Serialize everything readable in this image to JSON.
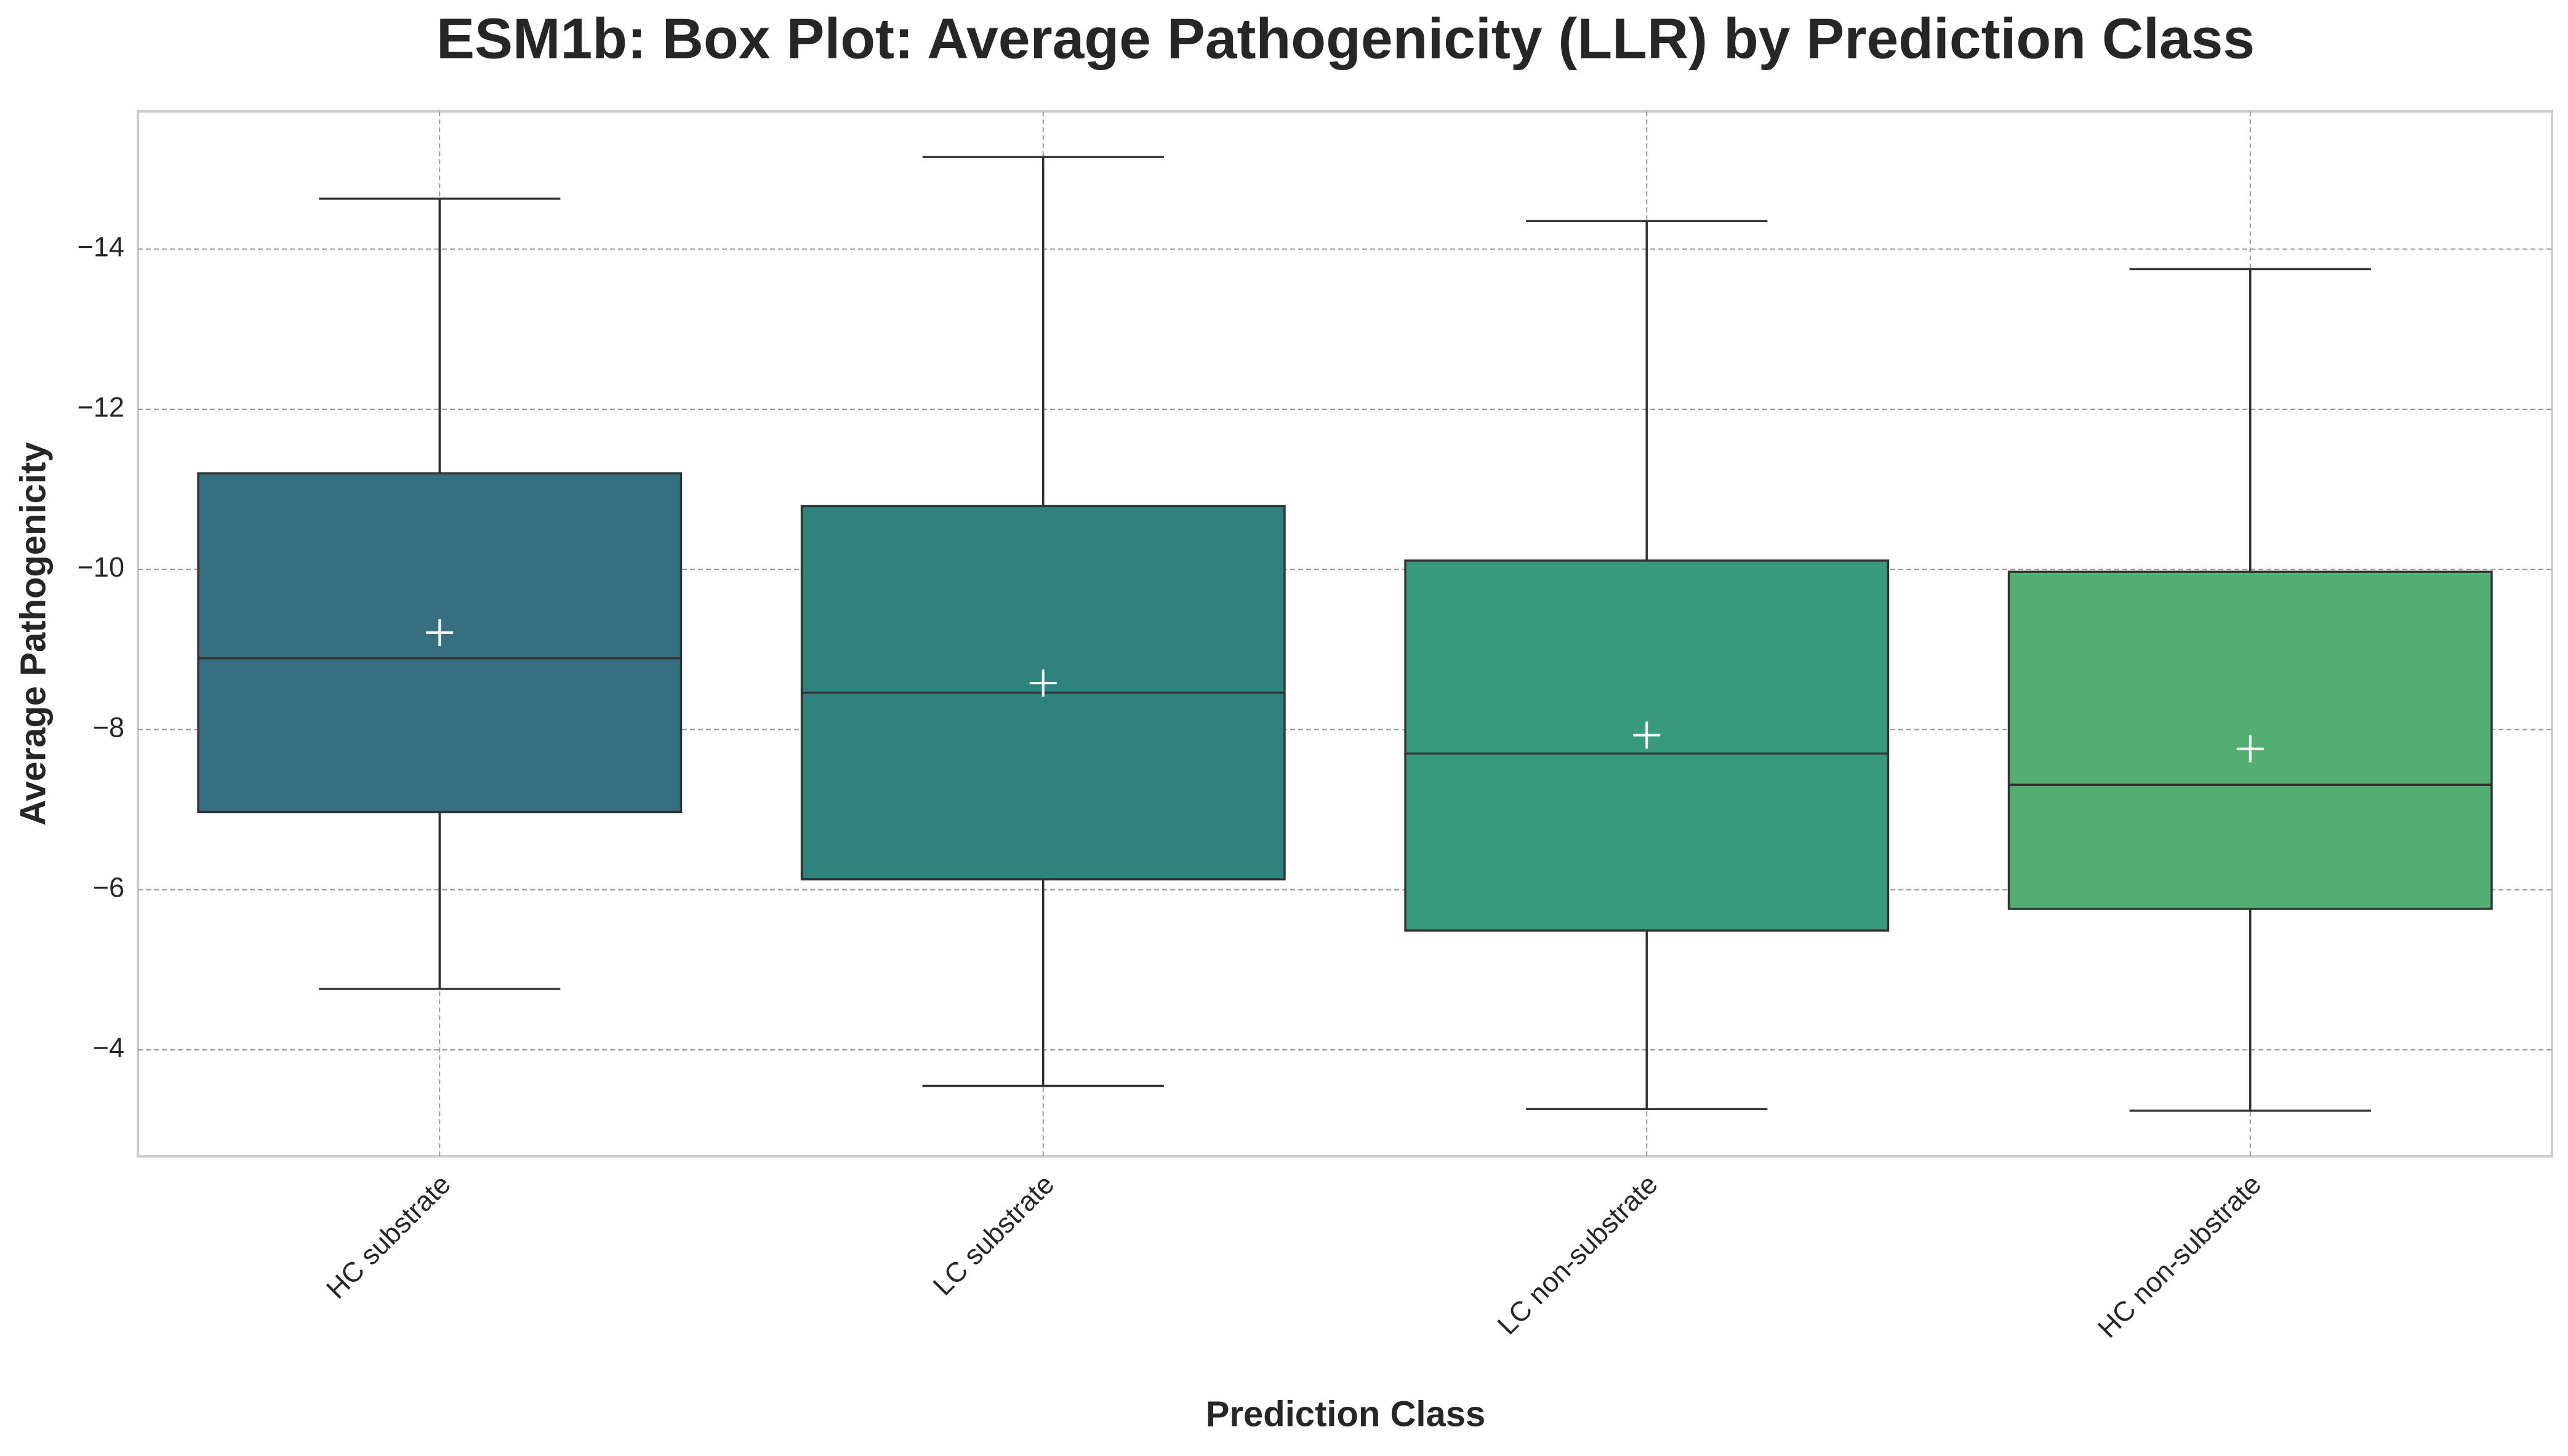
{
  "chart_data": {
    "type": "box",
    "title": "ESM1b: Box Plot: Average Pathogenicity (LLR) by Prediction Class",
    "x_label": "Prediction Class",
    "y_label": "Average Pathogenicity",
    "categories": [
      "HC substrate",
      "LC substrate",
      "LC non-substrate",
      "HC non-substrate"
    ],
    "colors": [
      "#366f80",
      "#2e837e",
      "#38997c",
      "#53ae72"
    ],
    "whisker_low": [
      -4.76,
      -3.55,
      -3.26,
      -3.24
    ],
    "q1": [
      -6.97,
      -6.13,
      -5.49,
      -5.76
    ],
    "median": [
      -8.89,
      -8.46,
      -7.7,
      -7.31
    ],
    "q3": [
      -11.2,
      -10.79,
      -10.11,
      -9.97
    ],
    "whisker_high": [
      -14.63,
      -15.15,
      -14.35,
      -13.75
    ],
    "mean": [
      -9.21,
      -8.58,
      -7.93,
      -7.76
    ],
    "ylim": [
      -2.67,
      -15.72
    ],
    "yticks": [
      {
        "value": -14,
        "label": "−14"
      },
      {
        "value": -12,
        "label": "−12"
      },
      {
        "value": -10,
        "label": "−10"
      },
      {
        "value": -8,
        "label": "−8"
      },
      {
        "value": -6,
        "label": "−6"
      },
      {
        "value": -4,
        "label": "−4"
      }
    ],
    "grid": true
  }
}
